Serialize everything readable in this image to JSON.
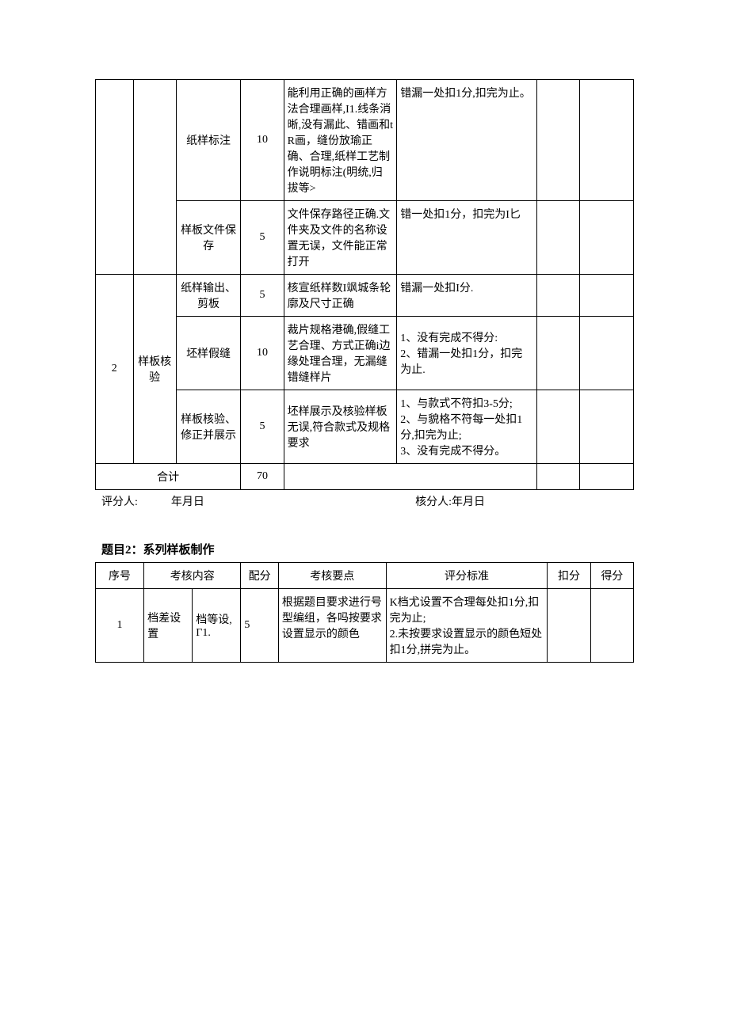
{
  "table1": {
    "rows": [
      {
        "sub": "纸样标注",
        "score": "10",
        "points": "能利用正确的画样方法合理画样,I1.线条消晰,没有漏此、错画和tR画，缝份放瑜正确、合理,纸样工艺制作说明标注(明统,归拔等>",
        "criteria": "错漏一处扣1分,扣完为止。"
      },
      {
        "sub": "样板文件保存",
        "score": "5",
        "points": "文件保存路径正确.文件夹及文件的名称设置无误，文件能正常打开",
        "criteria": "错一处扣1分，扣完为I匕"
      },
      {
        "seq": "2",
        "cat": "样板核验",
        "sub": "纸样输出、剪板",
        "score": "5",
        "points": "核宣纸样数I飒城条轮廓及尺寸正确",
        "criteria": "错漏一处扣I分."
      },
      {
        "sub": "坯样假缝",
        "score": "10",
        "points": "裁片规格港确,假缝工艺合理、方式正确i边缘处理合理，无漏缝错缝样片",
        "criteria": "1、没有完成不得分:\n2、错漏一处扣1分，扣完为止."
      },
      {
        "sub": "样板核验、修正并展示",
        "score": "5",
        "points": "坯样展示及核验样板无误,符合款式及规格要求",
        "criteria": "1、与款式不符扣3-5分;\n2、与貌格不符每一处扣1分,扣完为止;\n3、没有完成不得分。"
      }
    ],
    "total_label": "合计",
    "total_score": "70"
  },
  "signature": {
    "left": "评分人:　　　年月日",
    "right": "核分人:年月日"
  },
  "title2": "题目2：系列样板制作",
  "table2": {
    "header": [
      "序号",
      "考核内容",
      "配分",
      "考核要点",
      "评分标准",
      "扣分",
      "得分"
    ],
    "row": {
      "seq": "1",
      "cat": "档差设置",
      "sub": "档等设,Γ1.",
      "score": "5",
      "points": "根据题目要求进行号型编组，各吗按要求设置显示的颜色",
      "criteria": "K档尤设置不合理每处扣1分,扣完为止;\n2.未按要求设置显示的颜色短处扣1分,拼完为止。"
    }
  }
}
